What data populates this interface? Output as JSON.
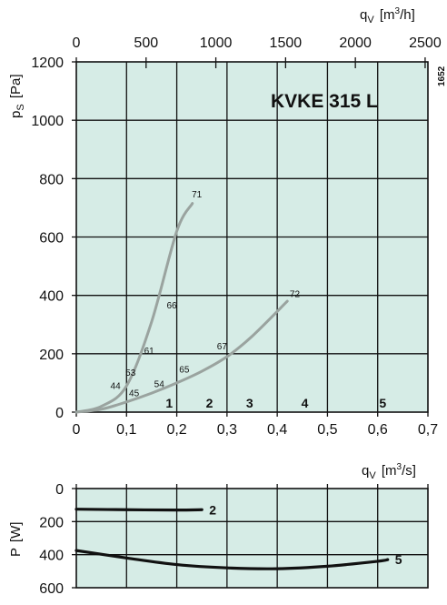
{
  "chart_data": [
    {
      "type": "line",
      "title": "KVKE  315  L",
      "id_label": "1652",
      "xlabel": "[m3/s]",
      "xlabel_parts": {
        "sym": "q",
        "sub": "V",
        "pre": "[m",
        "sup": "3",
        "post": "/s]"
      },
      "x_ticks": [
        "0",
        "0,1",
        "0,2",
        "0,3",
        "0,4",
        "0,5",
        "0,6",
        "0,7"
      ],
      "xlim": [
        0,
        0.7
      ],
      "x2label": "[m3/h]",
      "x2label_parts": {
        "sym": "q",
        "sub": "V",
        "pre": "[m",
        "sup": "3",
        "post": "/h]"
      },
      "x2_ticks": [
        "0",
        "500",
        "1000",
        "1500",
        "2000",
        "2500"
      ],
      "x2_values": [
        0,
        500,
        1000,
        1500,
        2000,
        2500
      ],
      "ylabel": "[Pa]",
      "ylabel_parts": {
        "sym": "p",
        "sub": "S",
        "post": "[Pa]"
      },
      "y_ticks": [
        "0",
        "200",
        "400",
        "600",
        "800",
        "1000",
        "1200"
      ],
      "ylim": [
        0,
        1200
      ],
      "grid": true,
      "background": "#d6ece6",
      "curve_color": "#9aa39f",
      "series": [
        {
          "x": [
            0,
            0.05,
            0.1,
            0.15,
            0.2,
            0.231
          ],
          "y": [
            0,
            20,
            90,
            310,
            620,
            715
          ]
        },
        {
          "x": [
            0,
            0.05,
            0.1,
            0.15,
            0.2,
            0.25,
            0.3,
            0.35,
            0.42
          ],
          "y": [
            0,
            10,
            35,
            65,
            100,
            140,
            190,
            260,
            380
          ]
        }
      ],
      "annotations": [
        {
          "text": "71",
          "x": 0.24,
          "y": 735
        },
        {
          "text": "66",
          "x": 0.19,
          "y": 355
        },
        {
          "text": "61",
          "x": 0.145,
          "y": 200
        },
        {
          "text": "53",
          "x": 0.108,
          "y": 125
        },
        {
          "text": "44",
          "x": 0.078,
          "y": 80
        },
        {
          "text": "45",
          "x": 0.115,
          "y": 55
        },
        {
          "text": "54",
          "x": 0.165,
          "y": 85
        },
        {
          "text": "65",
          "x": 0.215,
          "y": 135
        },
        {
          "text": "67",
          "x": 0.29,
          "y": 215
        },
        {
          "text": "72",
          "x": 0.435,
          "y": 395
        }
      ],
      "zones": [
        {
          "text": "1",
          "x": 0.185,
          "y": 15
        },
        {
          "text": "2",
          "x": 0.265,
          "y": 15
        },
        {
          "text": "3",
          "x": 0.345,
          "y": 15
        },
        {
          "text": "4",
          "x": 0.455,
          "y": 15
        },
        {
          "text": "5",
          "x": 0.61,
          "y": 15
        }
      ]
    },
    {
      "type": "line",
      "xlim": [
        0,
        0.7
      ],
      "ylabel": "[W]",
      "ylabel_parts": {
        "sym": "P",
        "post": "[W]"
      },
      "y_ticks": [
        "0",
        "200",
        "400",
        "600"
      ],
      "ylim": [
        0,
        600
      ],
      "y_inverted": true,
      "grid": true,
      "background": "#d6ece6",
      "curve_color": "#111111",
      "series": [
        {
          "name": "2",
          "x": [
            0,
            0.1,
            0.2,
            0.25
          ],
          "y": [
            125,
            128,
            130,
            128
          ]
        },
        {
          "name": "5",
          "x": [
            0,
            0.1,
            0.2,
            0.3,
            0.4,
            0.5,
            0.6,
            0.62
          ],
          "y": [
            375,
            420,
            460,
            480,
            485,
            470,
            440,
            430
          ]
        }
      ]
    }
  ]
}
